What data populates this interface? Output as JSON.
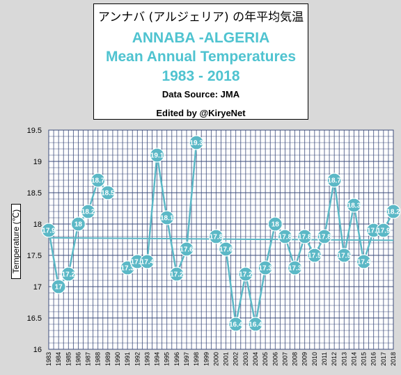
{
  "title": {
    "japanese": "アンナバ (アルジェリア) の年平均気温",
    "line1": "ANNABA -ALGERIA",
    "line2": "Mean Annual Temperatures",
    "line3": "1983 - 2018",
    "source": "Data Source: JMA",
    "edited": "Edited by @KiryeNet"
  },
  "colors": {
    "accent": "#4fc3d0",
    "line": "#5bb8c6",
    "grid": "#3a4a7a",
    "plot_bg": "#ffffff",
    "frame_bg": "#d9d9d9"
  },
  "chart_data": {
    "type": "line",
    "ylabel": "Temperature (℃)",
    "xlabel": "",
    "ylim": [
      16,
      19.5
    ],
    "yticks": [
      16,
      16.5,
      17,
      17.5,
      18,
      18.5,
      19,
      19.5
    ],
    "ytick_labels": [
      "16",
      "16.5",
      "17",
      "17.5",
      "18",
      "18.5",
      "19",
      "19.5"
    ],
    "grid": true,
    "x": [
      1983,
      1984,
      1985,
      1986,
      1987,
      1988,
      1989,
      1990,
      1991,
      1992,
      1993,
      1994,
      1995,
      1996,
      1997,
      1998,
      1999,
      2000,
      2001,
      2002,
      2003,
      2004,
      2005,
      2006,
      2007,
      2008,
      2009,
      2010,
      2011,
      2012,
      2013,
      2014,
      2015,
      2016,
      2017,
      2018
    ],
    "x_labels": [
      "1983",
      "1984",
      "1985",
      "1986",
      "1987",
      "1988",
      "1989",
      "1990",
      "1991",
      "1992",
      "1993",
      "1994",
      "1995",
      "1996",
      "1997",
      "1998",
      "1999",
      "2000",
      "2001",
      "2002",
      "2003",
      "2004",
      "2005",
      "2006",
      "2007",
      "2008",
      "2009",
      "2010",
      "2011",
      "2012",
      "2013",
      "2014",
      "2015",
      "2016",
      "2017",
      "2018"
    ],
    "series": [
      {
        "values": [
          17.9,
          17.0,
          17.2,
          18.0,
          18.2,
          18.7,
          18.5,
          null,
          17.3,
          17.4,
          17.4,
          19.1,
          18.1,
          17.2,
          17.6,
          19.3,
          null,
          17.8,
          17.6,
          16.4,
          17.2,
          16.4,
          17.3,
          18.0,
          17.8,
          17.3,
          17.8,
          17.5,
          17.8,
          18.7,
          17.5,
          18.3,
          17.4,
          17.9,
          17.9,
          18.2
        ],
        "labels": [
          "17.9",
          "17",
          "17.2",
          "18",
          "18.2",
          "18.7",
          "18.5",
          "",
          "17.3",
          "17.4",
          "17.4",
          "19.1",
          "18.1",
          "17.2",
          "17.6",
          "19.3",
          "",
          "17.8",
          "17.6",
          "16.4",
          "17.2",
          "16.4",
          "17.3",
          "18",
          "17.8",
          "17.3",
          "17.8",
          "17.5",
          "17.8",
          "18.7",
          "17.5",
          "18.3",
          "17.4",
          "17.9",
          "17.9",
          "18.2"
        ]
      }
    ],
    "trend": {
      "start_value": 17.78,
      "end_value": 17.74
    }
  }
}
